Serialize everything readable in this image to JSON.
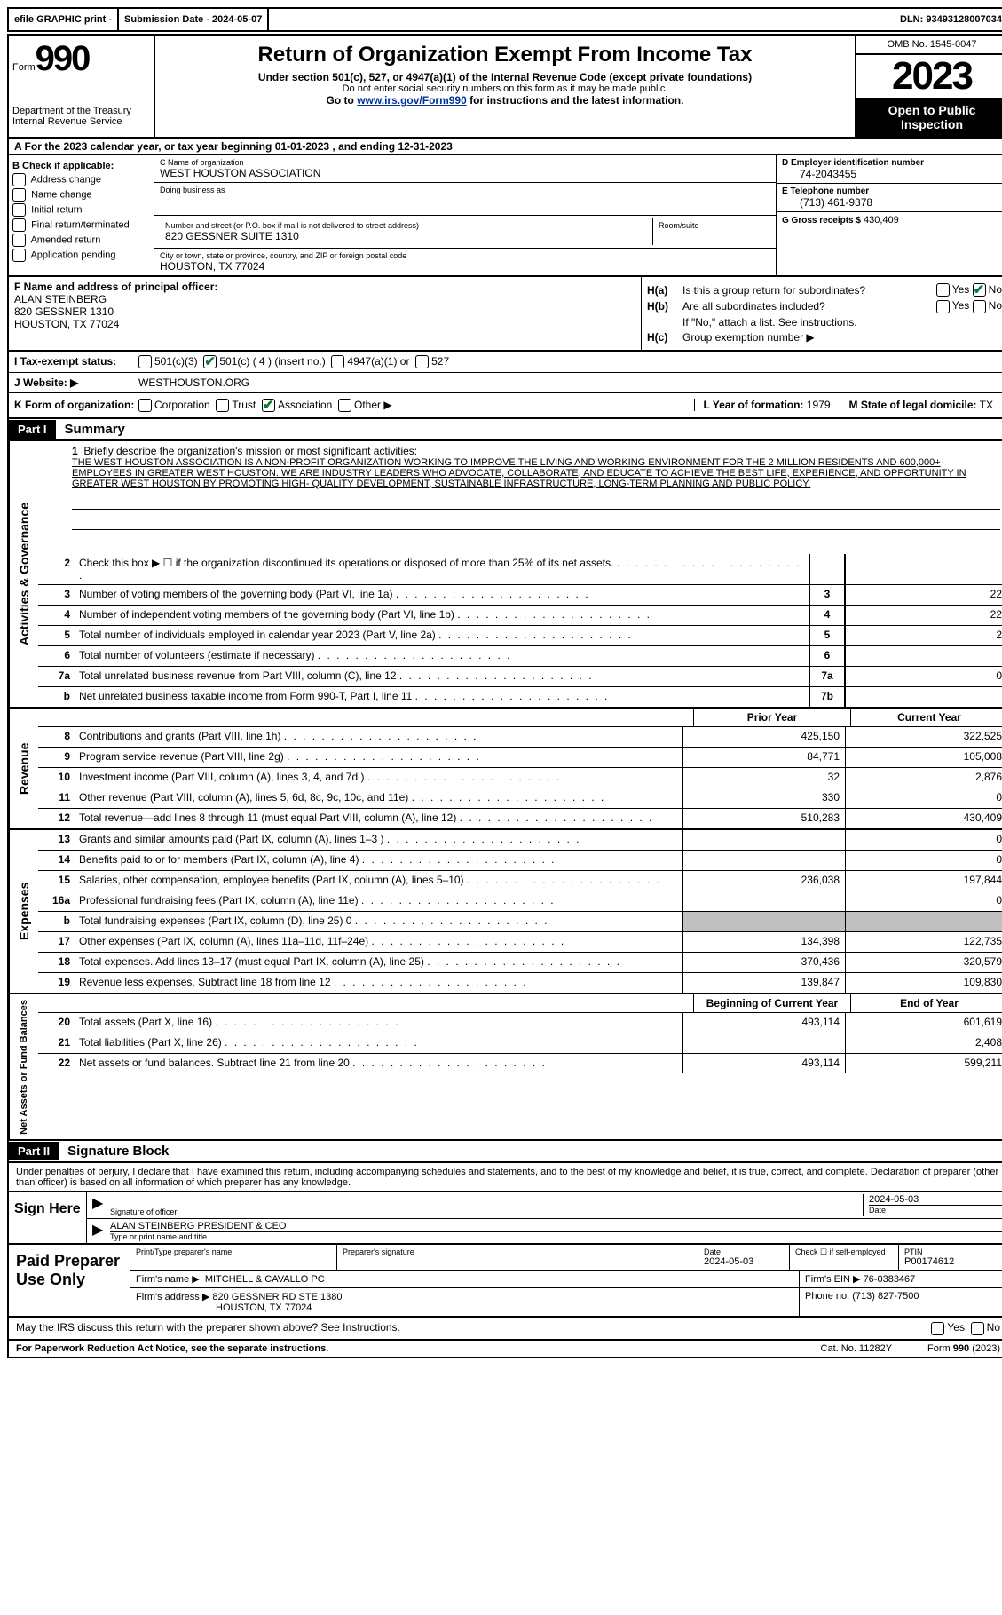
{
  "topbar": {
    "efile": "efile GRAPHIC print -",
    "submission_label": "Submission Date -",
    "submission_date": "2024-05-07",
    "dln_label": "DLN:",
    "dln": "93493128007034"
  },
  "header": {
    "form_word": "Form",
    "form_num": "990",
    "dept": "Department of the Treasury Internal Revenue Service",
    "title": "Return of Organization Exempt From Income Tax",
    "sub": "Under section 501(c), 527, or 4947(a)(1) of the Internal Revenue Code (except private foundations)",
    "ssn": "Do not enter social security numbers on this form as it may be made public.",
    "goto": "Go to",
    "goto_link": "www.irs.gov/Form990",
    "goto_after": "for instructions and the latest information.",
    "omb": "OMB No. 1545-0047",
    "year": "2023",
    "insp": "Open to Public Inspection"
  },
  "row_a": {
    "prefix": "A  For the 2023 calendar year, or tax year beginning",
    "begin": "01-01-2023",
    "mid": ", and ending",
    "end": "12-31-2023"
  },
  "col_b": {
    "title": "B Check if applicable:",
    "items": [
      "Address change",
      "Name change",
      "Initial return",
      "Final return/terminated",
      "Amended return",
      "Application pending"
    ]
  },
  "col_c": {
    "name_lbl": "C Name of organization",
    "name": "WEST HOUSTON ASSOCIATION",
    "dba_lbl": "Doing business as",
    "dba": "",
    "street_lbl": "Number and street (or P.O. box if mail is not delivered to street address)",
    "street": "820 GESSNER SUITE 1310",
    "room_lbl": "Room/suite",
    "city_lbl": "City or town, state or province, country, and ZIP or foreign postal code",
    "city": "HOUSTON, TX  77024"
  },
  "col_d": {
    "ein_lbl": "D Employer identification number",
    "ein": "74-2043455",
    "phone_lbl": "E Telephone number",
    "phone": "(713) 461-9378",
    "gross_lbl": "G Gross receipts $",
    "gross": "430,409"
  },
  "col_f": {
    "lbl": "F Name and address of principal officer:",
    "name": "ALAN STEINBERG",
    "addr1": "820 GESSNER 1310",
    "addr2": "HOUSTON, TX  77024"
  },
  "col_h": {
    "ha_lbl": "H(a)",
    "ha_txt": "Is this a group return for subordinates?",
    "hb_lbl": "H(b)",
    "hb_txt": "Are all subordinates included?",
    "hb_note": "If \"No,\" attach a list. See instructions.",
    "hc_lbl": "H(c)",
    "hc_txt": "Group exemption number ▶",
    "yes": "Yes",
    "no": "No"
  },
  "row_i": {
    "lbl": "I    Tax-exempt status:",
    "opt1": "501(c)(3)",
    "opt2": "501(c) ( 4 ) (insert no.)",
    "opt3": "4947(a)(1) or",
    "opt4": "527"
  },
  "row_j": {
    "lbl": "J   Website: ▶",
    "val": "WESTHOUSTON.ORG"
  },
  "row_k": {
    "lbl": "K Form of organization:",
    "opts": [
      "Corporation",
      "Trust",
      "Association",
      "Other ▶"
    ],
    "l_lbl": "L Year of formation:",
    "l_val": "1979",
    "m_lbl": "M State of legal domicile:",
    "m_val": "TX"
  },
  "part1": {
    "header": "Part I",
    "title": "Summary"
  },
  "mission": {
    "num": "1",
    "lbl": "Briefly describe the organization's mission or most significant activities:",
    "text": "THE WEST HOUSTON ASSOCIATION IS A NON-PROFIT ORGANIZATION WORKING TO IMPROVE THE LIVING AND WORKING ENVIRONMENT FOR THE 2 MILLION RESIDENTS AND 600,000+ EMPLOYEES IN GREATER WEST HOUSTON. WE ARE INDUSTRY LEADERS WHO ADVOCATE, COLLABORATE, AND EDUCATE TO ACHIEVE THE BEST LIFE, EXPERIENCE, AND OPPORTUNITY IN GREATER WEST HOUSTON BY PROMOTING HIGH- QUALITY DEVELOPMENT, SUSTAINABLE INFRASTRUCTURE, LONG-TERM PLANNING AND PUBLIC POLICY."
  },
  "side_labels": {
    "ag": "Activities & Governance",
    "rev": "Revenue",
    "exp": "Expenses",
    "na": "Net Assets or Fund Balances"
  },
  "lines_ag": [
    {
      "n": "2",
      "label": "Check this box ▶ ☐ if the organization discontinued its operations or disposed of more than 25% of its net assets.",
      "box": "",
      "val": ""
    },
    {
      "n": "3",
      "label": "Number of voting members of the governing body (Part VI, line 1a)",
      "box": "3",
      "val": "22"
    },
    {
      "n": "4",
      "label": "Number of independent voting members of the governing body (Part VI, line 1b)",
      "box": "4",
      "val": "22"
    },
    {
      "n": "5",
      "label": "Total number of individuals employed in calendar year 2023 (Part V, line 2a)",
      "box": "5",
      "val": "2"
    },
    {
      "n": "6",
      "label": "Total number of volunteers (estimate if necessary)",
      "box": "6",
      "val": ""
    },
    {
      "n": "7a",
      "label": "Total unrelated business revenue from Part VIII, column (C), line 12",
      "box": "7a",
      "val": "0"
    },
    {
      "n": "b",
      "label": "Net unrelated business taxable income from Form 990-T, Part I, line 11",
      "box": "7b",
      "val": ""
    }
  ],
  "col_headers": {
    "prior": "Prior Year",
    "current": "Current Year"
  },
  "lines_rev": [
    {
      "n": "8",
      "label": "Contributions and grants (Part VIII, line 1h)",
      "prior": "425,150",
      "current": "322,525"
    },
    {
      "n": "9",
      "label": "Program service revenue (Part VIII, line 2g)",
      "prior": "84,771",
      "current": "105,008"
    },
    {
      "n": "10",
      "label": "Investment income (Part VIII, column (A), lines 3, 4, and 7d )",
      "prior": "32",
      "current": "2,876"
    },
    {
      "n": "11",
      "label": "Other revenue (Part VIII, column (A), lines 5, 6d, 8c, 9c, 10c, and 11e)",
      "prior": "330",
      "current": "0"
    },
    {
      "n": "12",
      "label": "Total revenue—add lines 8 through 11 (must equal Part VIII, column (A), line 12)",
      "prior": "510,283",
      "current": "430,409"
    }
  ],
  "lines_exp": [
    {
      "n": "13",
      "label": "Grants and similar amounts paid (Part IX, column (A), lines 1–3 )",
      "prior": "",
      "current": "0"
    },
    {
      "n": "14",
      "label": "Benefits paid to or for members (Part IX, column (A), line 4)",
      "prior": "",
      "current": "0"
    },
    {
      "n": "15",
      "label": "Salaries, other compensation, employee benefits (Part IX, column (A), lines 5–10)",
      "prior": "236,038",
      "current": "197,844"
    },
    {
      "n": "16a",
      "label": "Professional fundraising fees (Part IX, column (A), line 11e)",
      "prior": "",
      "current": "0"
    },
    {
      "n": "b",
      "label": "Total fundraising expenses (Part IX, column (D), line 25) 0",
      "prior": "shade",
      "current": "shade"
    },
    {
      "n": "17",
      "label": "Other expenses (Part IX, column (A), lines 11a–11d, 11f–24e)",
      "prior": "134,398",
      "current": "122,735"
    },
    {
      "n": "18",
      "label": "Total expenses. Add lines 13–17 (must equal Part IX, column (A), line 25)",
      "prior": "370,436",
      "current": "320,579"
    },
    {
      "n": "19",
      "label": "Revenue less expenses. Subtract line 18 from line 12",
      "prior": "139,847",
      "current": "109,830"
    }
  ],
  "col_headers2": {
    "begin": "Beginning of Current Year",
    "end": "End of Year"
  },
  "lines_na": [
    {
      "n": "20",
      "label": "Total assets (Part X, line 16)",
      "prior": "493,114",
      "current": "601,619"
    },
    {
      "n": "21",
      "label": "Total liabilities (Part X, line 26)",
      "prior": "",
      "current": "2,408"
    },
    {
      "n": "22",
      "label": "Net assets or fund balances. Subtract line 21 from line 20",
      "prior": "493,114",
      "current": "599,211"
    }
  ],
  "part2": {
    "header": "Part II",
    "title": "Signature Block"
  },
  "sig": {
    "text": "Under penalties of perjury, I declare that I have examined this return, including accompanying schedules and statements, and to the best of my knowledge and belief, it is true, correct, and complete. Declaration of preparer (other than officer) is based on all information of which preparer has any knowledge.",
    "sign_here": "Sign Here",
    "sig_of_officer": "Signature of officer",
    "officer": "ALAN STEINBERG  PRESIDENT & CEO",
    "type_name": "Type or print name and title",
    "date_lbl": "Date",
    "date": "2024-05-03"
  },
  "prep": {
    "title": "Paid Preparer Use Only",
    "print_name_lbl": "Print/Type preparer's name",
    "print_name": "",
    "sig_lbl": "Preparer's signature",
    "date_lbl": "Date",
    "date": "2024-05-03",
    "check_lbl": "Check ☐ if self-employed",
    "ptin_lbl": "PTIN",
    "ptin": "P00174612",
    "firm_name_lbl": "Firm's name    ▶",
    "firm_name": "MITCHELL & CAVALLO PC",
    "firm_ein_lbl": "Firm's EIN ▶",
    "firm_ein": "76-0383467",
    "firm_addr_lbl": "Firm's address ▶",
    "firm_addr1": "820 GESSNER RD STE 1380",
    "firm_addr2": "HOUSTON, TX  77024",
    "phone_lbl": "Phone no.",
    "phone": "(713) 827-7500"
  },
  "footer": {
    "discuss": "May the IRS discuss this return with the preparer shown above? See Instructions.",
    "yes": "Yes",
    "no": "No",
    "paperwork": "For Paperwork Reduction Act Notice, see the separate instructions.",
    "cat": "Cat. No. 11282Y",
    "form": "Form",
    "form_num": "990",
    "form_year": "(2023)"
  }
}
